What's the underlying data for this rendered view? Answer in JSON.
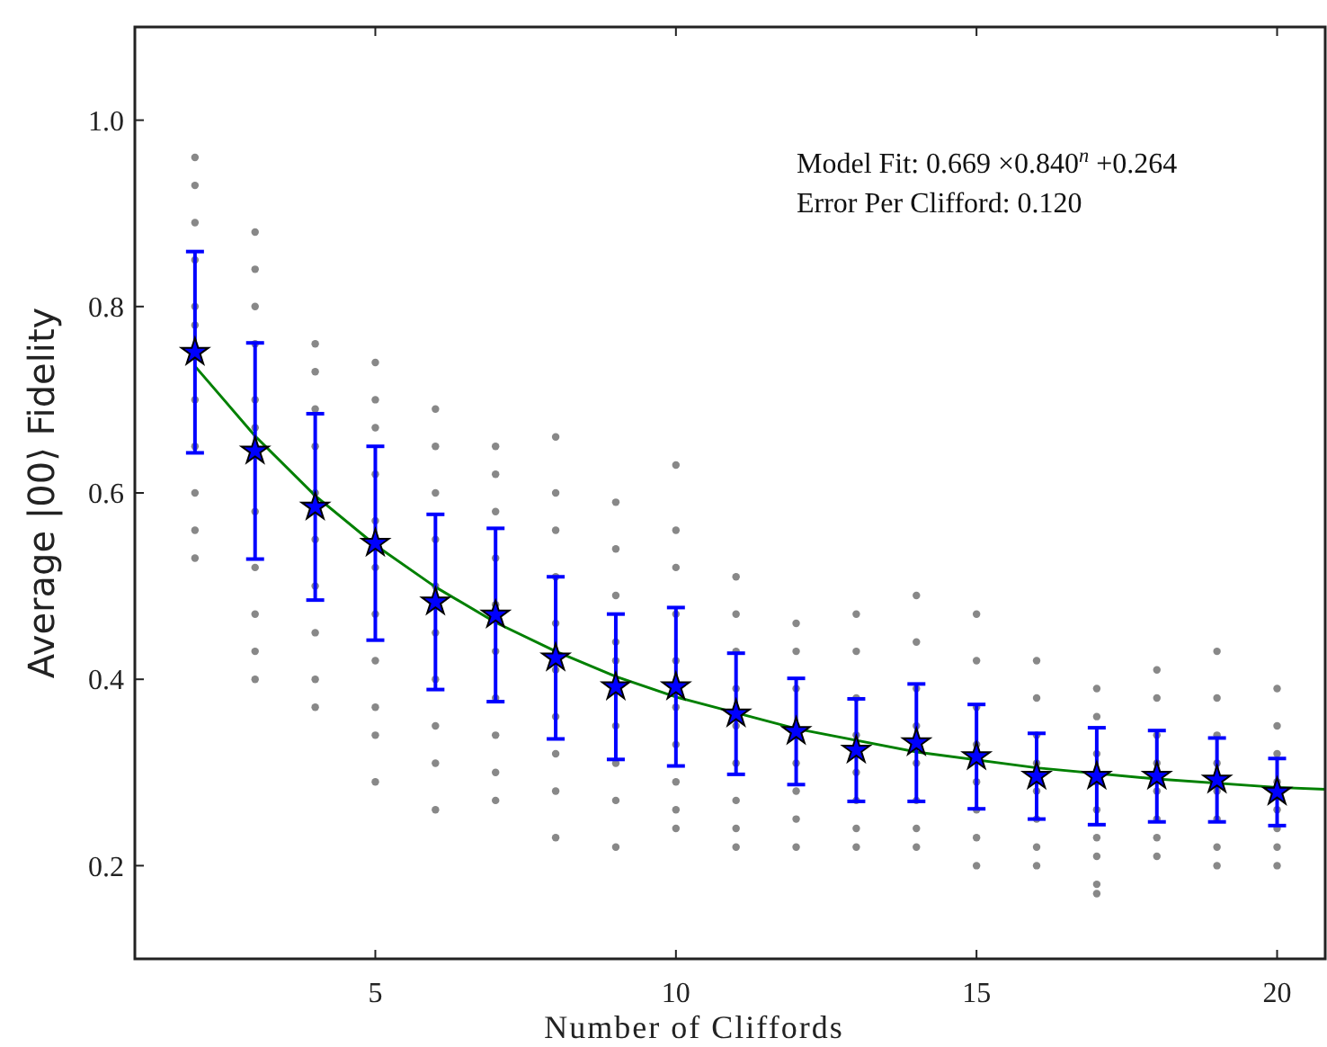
{
  "chart_data": {
    "type": "scatter",
    "xlabel": "Number of Cliffords",
    "ylabel": "Average |00⟩ Fidelity",
    "xlim": [
      1,
      20.8
    ],
    "ylim": [
      0.1,
      1.1
    ],
    "xticks": [
      5,
      10,
      15,
      20
    ],
    "yticks": [
      0.2,
      0.4,
      0.6,
      0.8,
      {
        "value": 1,
        "label": "1.0"
      }
    ],
    "grid": false,
    "annotations": [
      "Model Fit: 0.669 ×0.840$^{n}$ +0.264",
      "Error Per Clifford: 0.120"
    ],
    "series": [
      {
        "marker": "circle",
        "color": "#888888",
        "x": [
          2,
          2,
          2,
          2,
          2,
          2,
          2,
          2,
          2,
          2,
          2,
          3,
          3,
          3,
          3,
          3,
          3,
          3,
          3,
          3,
          3,
          3,
          4,
          4,
          4,
          4,
          4,
          4,
          4,
          4,
          4,
          4,
          5,
          5,
          5,
          5,
          5,
          5,
          5,
          5,
          5,
          5,
          5,
          6,
          6,
          6,
          6,
          6,
          6,
          6,
          6,
          6,
          6,
          7,
          7,
          7,
          7,
          7,
          7,
          7,
          7,
          7,
          7,
          8,
          8,
          8,
          8,
          8,
          8,
          8,
          8,
          8,
          8,
          9,
          9,
          9,
          9,
          9,
          9,
          9,
          9,
          9,
          10,
          10,
          10,
          10,
          10,
          10,
          10,
          10,
          10,
          10,
          11,
          11,
          11,
          11,
          11,
          11,
          11,
          11,
          11,
          12,
          12,
          12,
          12,
          12,
          12,
          12,
          12,
          13,
          13,
          13,
          13,
          13,
          13,
          13,
          13,
          14,
          14,
          14,
          14,
          14,
          14,
          14,
          14,
          15,
          15,
          15,
          15,
          15,
          15,
          15,
          15,
          16,
          16,
          16,
          16,
          16,
          16,
          16,
          16,
          17,
          17,
          17,
          17,
          17,
          17,
          17,
          17,
          17,
          18,
          18,
          18,
          18,
          18,
          18,
          18,
          18,
          19,
          19,
          19,
          19,
          19,
          19,
          19,
          19,
          20,
          20,
          20,
          20,
          20,
          20,
          20,
          20
        ],
        "values": [
          0.96,
          0.93,
          0.89,
          0.85,
          0.8,
          0.78,
          0.7,
          0.65,
          0.6,
          0.56,
          0.53,
          0.88,
          0.84,
          0.8,
          0.76,
          0.7,
          0.67,
          0.58,
          0.52,
          0.47,
          0.43,
          0.4,
          0.76,
          0.73,
          0.69,
          0.65,
          0.6,
          0.55,
          0.5,
          0.45,
          0.4,
          0.37,
          0.74,
          0.7,
          0.67,
          0.62,
          0.57,
          0.52,
          0.47,
          0.42,
          0.37,
          0.34,
          0.29,
          0.69,
          0.65,
          0.6,
          0.55,
          0.5,
          0.45,
          0.4,
          0.35,
          0.31,
          0.26,
          0.65,
          0.62,
          0.58,
          0.53,
          0.48,
          0.43,
          0.38,
          0.34,
          0.3,
          0.27,
          0.66,
          0.6,
          0.56,
          0.51,
          0.46,
          0.41,
          0.36,
          0.32,
          0.28,
          0.23,
          0.59,
          0.54,
          0.49,
          0.44,
          0.42,
          0.35,
          0.31,
          0.27,
          0.22,
          0.63,
          0.56,
          0.52,
          0.47,
          0.42,
          0.37,
          0.33,
          0.29,
          0.26,
          0.24,
          0.51,
          0.47,
          0.43,
          0.39,
          0.35,
          0.31,
          0.27,
          0.24,
          0.22,
          0.46,
          0.43,
          0.39,
          0.35,
          0.31,
          0.28,
          0.25,
          0.22,
          0.47,
          0.43,
          0.38,
          0.34,
          0.3,
          0.27,
          0.24,
          0.22,
          0.49,
          0.44,
          0.39,
          0.35,
          0.31,
          0.27,
          0.24,
          0.22,
          0.47,
          0.42,
          0.37,
          0.33,
          0.29,
          0.26,
          0.23,
          0.2,
          0.42,
          0.38,
          0.34,
          0.31,
          0.28,
          0.25,
          0.22,
          0.2,
          0.39,
          0.36,
          0.32,
          0.29,
          0.26,
          0.23,
          0.21,
          0.18,
          0.17,
          0.41,
          0.38,
          0.34,
          0.31,
          0.28,
          0.25,
          0.23,
          0.21,
          0.43,
          0.38,
          0.34,
          0.31,
          0.28,
          0.25,
          0.22,
          0.2,
          0.39,
          0.35,
          0.32,
          0.29,
          0.26,
          0.24,
          0.22,
          0.2
        ]
      },
      {
        "type": "line",
        "marker": "none",
        "line_style": "solid",
        "color": "#008000",
        "x": [
          2,
          3,
          4,
          5,
          6,
          7,
          8,
          9,
          10,
          12,
          14,
          16,
          18,
          20,
          20.8
        ],
        "values": [
          0.736,
          0.661,
          0.597,
          0.544,
          0.499,
          0.461,
          0.43,
          0.403,
          0.381,
          0.347,
          0.322,
          0.305,
          0.293,
          0.284,
          0.282
        ]
      },
      {
        "marker": "star",
        "color": "#0000ff",
        "x": [
          2,
          3,
          4,
          5,
          6,
          7,
          8,
          9,
          10,
          11,
          12,
          13,
          14,
          15,
          16,
          17,
          18,
          19,
          20
        ],
        "values": [
          0.751,
          0.645,
          0.585,
          0.546,
          0.483,
          0.469,
          0.423,
          0.392,
          0.392,
          0.363,
          0.344,
          0.324,
          0.332,
          0.317,
          0.296,
          0.296,
          0.296,
          0.292,
          0.279
        ],
        "errors": [
          0.108,
          0.116,
          0.1,
          0.104,
          0.094,
          0.093,
          0.087,
          0.078,
          0.085,
          0.065,
          0.057,
          0.055,
          0.063,
          0.056,
          0.046,
          0.052,
          0.049,
          0.045,
          0.036
        ]
      }
    ]
  }
}
